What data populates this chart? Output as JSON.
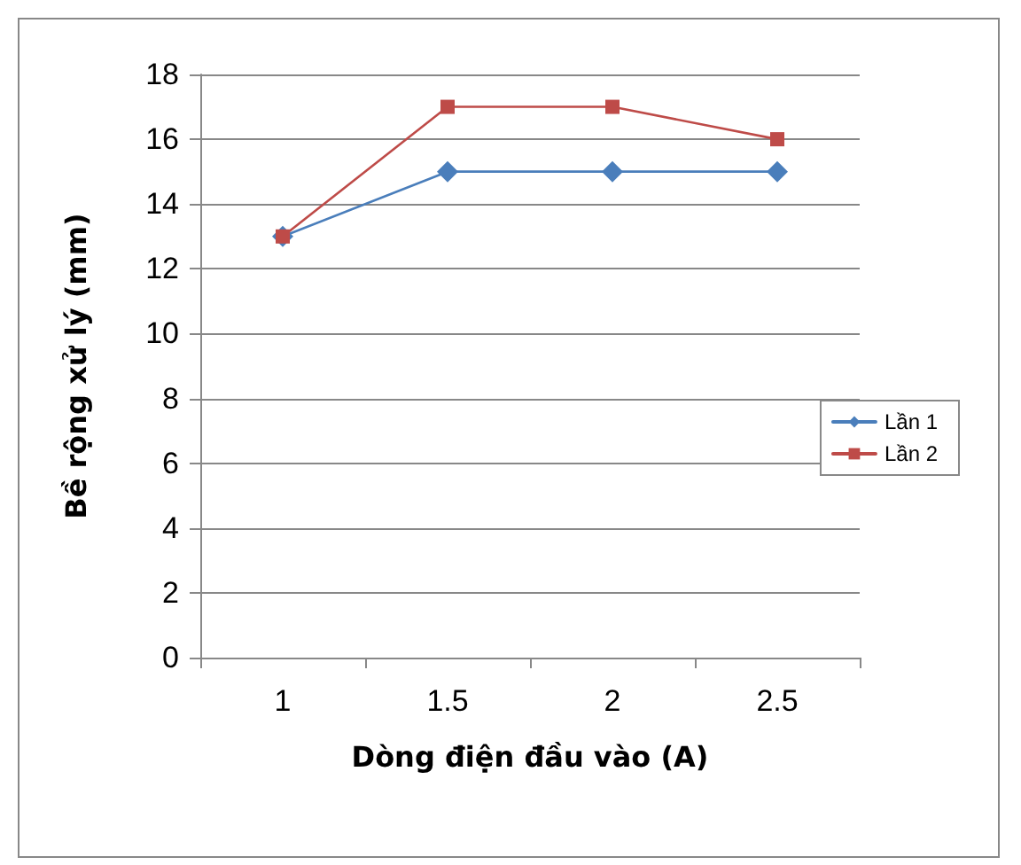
{
  "chart_data": {
    "type": "line",
    "xlabel": "Dòng điện đầu vào (A)",
    "ylabel": "Bề rộng xử lý (mm)",
    "categories": [
      "1",
      "1.5",
      "2",
      "2.5"
    ],
    "series": [
      {
        "name": "Lần 1",
        "color": "#4a7ebb",
        "marker": "diamond",
        "values": [
          13,
          15,
          15,
          15
        ]
      },
      {
        "name": "Lần 2",
        "color": "#be4b48",
        "marker": "square",
        "values": [
          13,
          17,
          17,
          16
        ]
      }
    ],
    "ylim": [
      0,
      18
    ],
    "yticks": [
      0,
      2,
      4,
      6,
      8,
      10,
      12,
      14,
      16,
      18
    ],
    "grid": "y",
    "legend": "right",
    "line_style": "solid"
  }
}
